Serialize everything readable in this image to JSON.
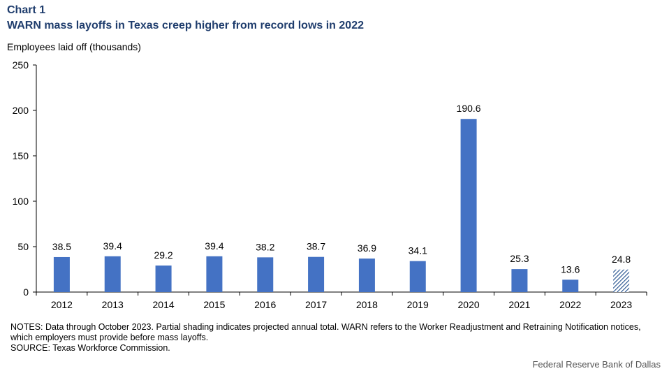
{
  "header": {
    "chart_label": "Chart 1",
    "title": "WARN mass layoffs in Texas creep higher from record lows in 2022",
    "ylabel": "Employees laid off (thousands)"
  },
  "chart_data": {
    "type": "bar",
    "categories": [
      "2012",
      "2013",
      "2014",
      "2015",
      "2016",
      "2017",
      "2018",
      "2019",
      "2020",
      "2021",
      "2022",
      "2023"
    ],
    "values": [
      38.5,
      39.4,
      29.2,
      39.4,
      38.2,
      38.7,
      36.9,
      34.1,
      190.6,
      25.3,
      13.6,
      24.8
    ],
    "data_labels": [
      "38.5",
      "39.4",
      "29.2",
      "39.4",
      "38.2",
      "38.7",
      "36.9",
      "34.1",
      "190.6",
      "25.3",
      "13.6",
      "24.8"
    ],
    "projected": [
      false,
      false,
      false,
      false,
      false,
      false,
      false,
      false,
      false,
      false,
      false,
      true
    ],
    "ylim": [
      0,
      250
    ],
    "yticks": [
      0,
      50,
      100,
      150,
      200,
      250
    ],
    "grid": false,
    "colors": {
      "bar": "#4472c4",
      "projected_hatch": "#1f4e8c"
    }
  },
  "footer": {
    "notes": "NOTES: Data through October 2023. Partial shading indicates projected annual total. WARN refers to the Worker Readjustment and Retraining Notification notices, which employers must provide before mass layoffs.",
    "source": "SOURCE: Texas Workforce Commission.",
    "credit": "Federal Reserve Bank of Dallas"
  }
}
